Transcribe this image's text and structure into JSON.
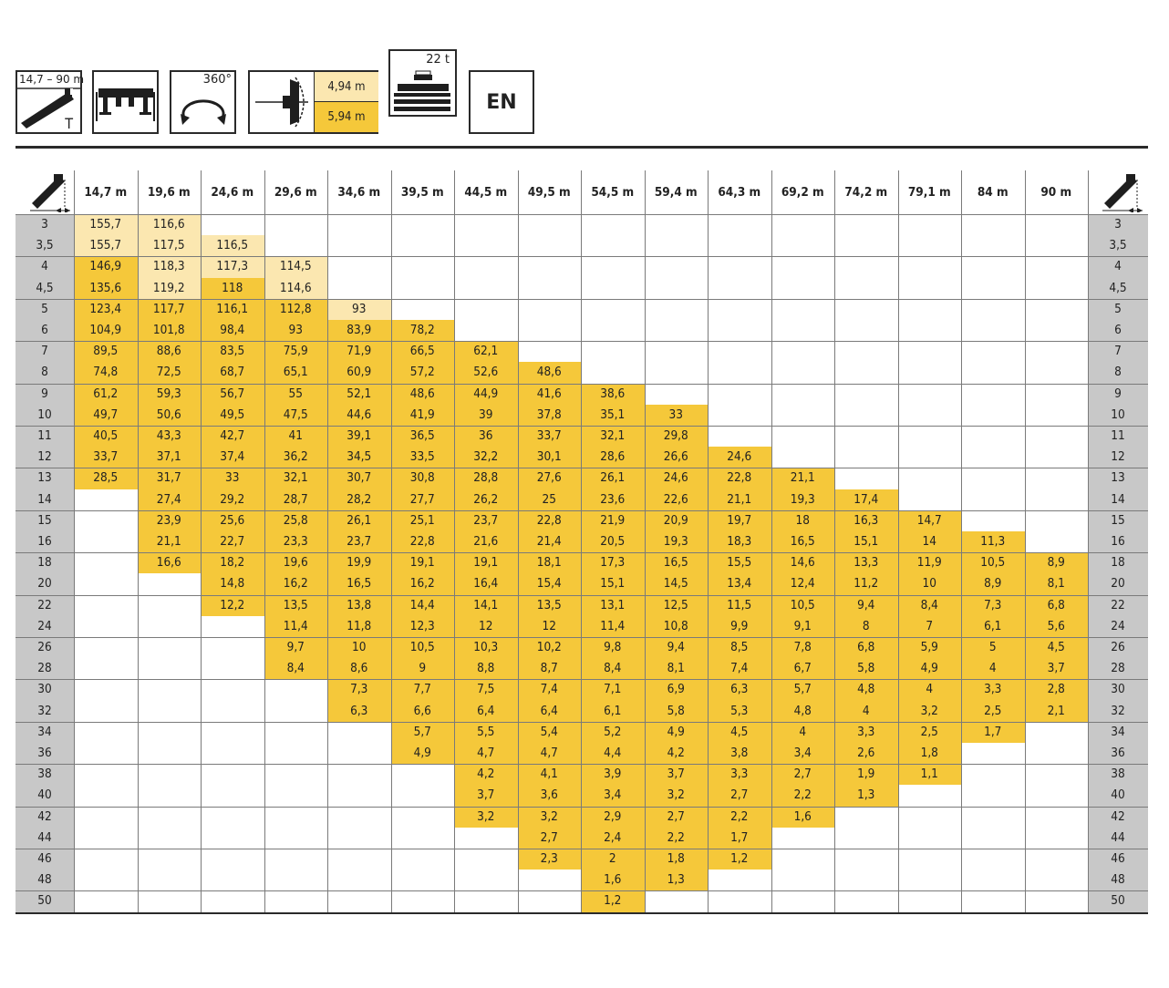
{
  "header": {
    "boom_range": "14,7 – 90 m",
    "boom_t": "T",
    "rotation": "360°",
    "counterweight_small": "4,94 m",
    "counterweight_large": "5,94 m",
    "ballast": "22 t",
    "language": "EN"
  },
  "colors": {
    "yellow": "#f5c83a",
    "pale": "#fbe7b0",
    "grey": "#c8c8c8"
  },
  "table": {
    "booms": [
      "14,7 m",
      "19,6 m",
      "24,6 m",
      "29,6 m",
      "34,6 m",
      "39,5 m",
      "44,5 m",
      "49,5 m",
      "54,5 m",
      "59,4 m",
      "64,3 m",
      "69,2 m",
      "74,2 m",
      "79,1 m",
      "84 m",
      "90 m"
    ],
    "radii": [
      "3",
      "3,5",
      "4",
      "4,5",
      "5",
      "6",
      "7",
      "8",
      "9",
      "10",
      "11",
      "12",
      "13",
      "14",
      "15",
      "16",
      "18",
      "20",
      "22",
      "24",
      "26",
      "28",
      "30",
      "32",
      "34",
      "36",
      "38",
      "40",
      "42",
      "44",
      "46",
      "48",
      "50"
    ],
    "rows": [
      [
        "155,7",
        "116,6",
        "",
        "",
        "",
        "",
        "",
        "",
        "",
        "",
        "",
        "",
        "",
        "",
        "",
        ""
      ],
      [
        "155,7",
        "117,5",
        "116,5",
        "",
        "",
        "",
        "",
        "",
        "",
        "",
        "",
        "",
        "",
        "",
        "",
        ""
      ],
      [
        "146,9",
        "118,3",
        "117,3",
        "114,5",
        "",
        "",
        "",
        "",
        "",
        "",
        "",
        "",
        "",
        "",
        "",
        ""
      ],
      [
        "135,6",
        "119,2",
        "118",
        "114,6",
        "",
        "",
        "",
        "",
        "",
        "",
        "",
        "",
        "",
        "",
        "",
        ""
      ],
      [
        "123,4",
        "117,7",
        "116,1",
        "112,8",
        "93",
        "",
        "",
        "",
        "",
        "",
        "",
        "",
        "",
        "",
        "",
        ""
      ],
      [
        "104,9",
        "101,8",
        "98,4",
        "93",
        "83,9",
        "78,2",
        "",
        "",
        "",
        "",
        "",
        "",
        "",
        "",
        "",
        ""
      ],
      [
        "89,5",
        "88,6",
        "83,5",
        "75,9",
        "71,9",
        "66,5",
        "62,1",
        "",
        "",
        "",
        "",
        "",
        "",
        "",
        "",
        ""
      ],
      [
        "74,8",
        "72,5",
        "68,7",
        "65,1",
        "60,9",
        "57,2",
        "52,6",
        "48,6",
        "",
        "",
        "",
        "",
        "",
        "",
        "",
        ""
      ],
      [
        "61,2",
        "59,3",
        "56,7",
        "55",
        "52,1",
        "48,6",
        "44,9",
        "41,6",
        "38,6",
        "",
        "",
        "",
        "",
        "",
        "",
        ""
      ],
      [
        "49,7",
        "50,6",
        "49,5",
        "47,5",
        "44,6",
        "41,9",
        "39",
        "37,8",
        "35,1",
        "33",
        "",
        "",
        "",
        "",
        "",
        ""
      ],
      [
        "40,5",
        "43,3",
        "42,7",
        "41",
        "39,1",
        "36,5",
        "36",
        "33,7",
        "32,1",
        "29,8",
        "",
        "",
        "",
        "",
        "",
        ""
      ],
      [
        "33,7",
        "37,1",
        "37,4",
        "36,2",
        "34,5",
        "33,5",
        "32,2",
        "30,1",
        "28,6",
        "26,6",
        "24,6",
        "",
        "",
        "",
        "",
        ""
      ],
      [
        "28,5",
        "31,7",
        "33",
        "32,1",
        "30,7",
        "30,8",
        "28,8",
        "27,6",
        "26,1",
        "24,6",
        "22,8",
        "21,1",
        "",
        "",
        "",
        ""
      ],
      [
        "",
        "27,4",
        "29,2",
        "28,7",
        "28,2",
        "27,7",
        "26,2",
        "25",
        "23,6",
        "22,6",
        "21,1",
        "19,3",
        "17,4",
        "",
        "",
        ""
      ],
      [
        "",
        "23,9",
        "25,6",
        "25,8",
        "26,1",
        "25,1",
        "23,7",
        "22,8",
        "21,9",
        "20,9",
        "19,7",
        "18",
        "16,3",
        "14,7",
        "",
        ""
      ],
      [
        "",
        "21,1",
        "22,7",
        "23,3",
        "23,7",
        "22,8",
        "21,6",
        "21,4",
        "20,5",
        "19,3",
        "18,3",
        "16,5",
        "15,1",
        "14",
        "11,3",
        ""
      ],
      [
        "",
        "16,6",
        "18,2",
        "19,6",
        "19,9",
        "19,1",
        "19,1",
        "18,1",
        "17,3",
        "16,5",
        "15,5",
        "14,6",
        "13,3",
        "11,9",
        "10,5",
        "8,9"
      ],
      [
        "",
        "",
        "14,8",
        "16,2",
        "16,5",
        "16,2",
        "16,4",
        "15,4",
        "15,1",
        "14,5",
        "13,4",
        "12,4",
        "11,2",
        "10",
        "8,9",
        "8,1"
      ],
      [
        "",
        "",
        "12,2",
        "13,5",
        "13,8",
        "14,4",
        "14,1",
        "13,5",
        "13,1",
        "12,5",
        "11,5",
        "10,5",
        "9,4",
        "8,4",
        "7,3",
        "6,8"
      ],
      [
        "",
        "",
        "",
        "11,4",
        "11,8",
        "12,3",
        "12",
        "12",
        "11,4",
        "10,8",
        "9,9",
        "9,1",
        "8",
        "7",
        "6,1",
        "5,6"
      ],
      [
        "",
        "",
        "",
        "9,7",
        "10",
        "10,5",
        "10,3",
        "10,2",
        "9,8",
        "9,4",
        "8,5",
        "7,8",
        "6,8",
        "5,9",
        "5",
        "4,5"
      ],
      [
        "",
        "",
        "",
        "8,4",
        "8,6",
        "9",
        "8,8",
        "8,7",
        "8,4",
        "8,1",
        "7,4",
        "6,7",
        "5,8",
        "4,9",
        "4",
        "3,7"
      ],
      [
        "",
        "",
        "",
        "",
        "7,3",
        "7,7",
        "7,5",
        "7,4",
        "7,1",
        "6,9",
        "6,3",
        "5,7",
        "4,8",
        "4",
        "3,3",
        "2,8"
      ],
      [
        "",
        "",
        "",
        "",
        "6,3",
        "6,6",
        "6,4",
        "6,4",
        "6,1",
        "5,8",
        "5,3",
        "4,8",
        "4",
        "3,2",
        "2,5",
        "2,1"
      ],
      [
        "",
        "",
        "",
        "",
        "",
        "5,7",
        "5,5",
        "5,4",
        "5,2",
        "4,9",
        "4,5",
        "4",
        "3,3",
        "2,5",
        "1,7",
        ""
      ],
      [
        "",
        "",
        "",
        "",
        "",
        "4,9",
        "4,7",
        "4,7",
        "4,4",
        "4,2",
        "3,8",
        "3,4",
        "2,6",
        "1,8",
        "",
        ""
      ],
      [
        "",
        "",
        "",
        "",
        "",
        "",
        "4,2",
        "4,1",
        "3,9",
        "3,7",
        "3,3",
        "2,7",
        "1,9",
        "1,1",
        "",
        ""
      ],
      [
        "",
        "",
        "",
        "",
        "",
        "",
        "3,7",
        "3,6",
        "3,4",
        "3,2",
        "2,7",
        "2,2",
        "1,3",
        "",
        "",
        ""
      ],
      [
        "",
        "",
        "",
        "",
        "",
        "",
        "3,2",
        "3,2",
        "2,9",
        "2,7",
        "2,2",
        "1,6",
        "",
        "",
        "",
        ""
      ],
      [
        "",
        "",
        "",
        "",
        "",
        "",
        "",
        "2,7",
        "2,4",
        "2,2",
        "1,7",
        "",
        "",
        "",
        "",
        ""
      ],
      [
        "",
        "",
        "",
        "",
        "",
        "",
        "",
        "2,3",
        "2",
        "1,8",
        "1,2",
        "",
        "",
        "",
        "",
        ""
      ],
      [
        "",
        "",
        "",
        "",
        "",
        "",
        "",
        "",
        "1,6",
        "1,3",
        "",
        "",
        "",
        "",
        "",
        ""
      ],
      [
        "",
        "",
        "",
        "",
        "",
        "",
        "",
        "",
        "1,2",
        "",
        "",
        "",
        "",
        "",
        "",
        ""
      ]
    ]
  }
}
